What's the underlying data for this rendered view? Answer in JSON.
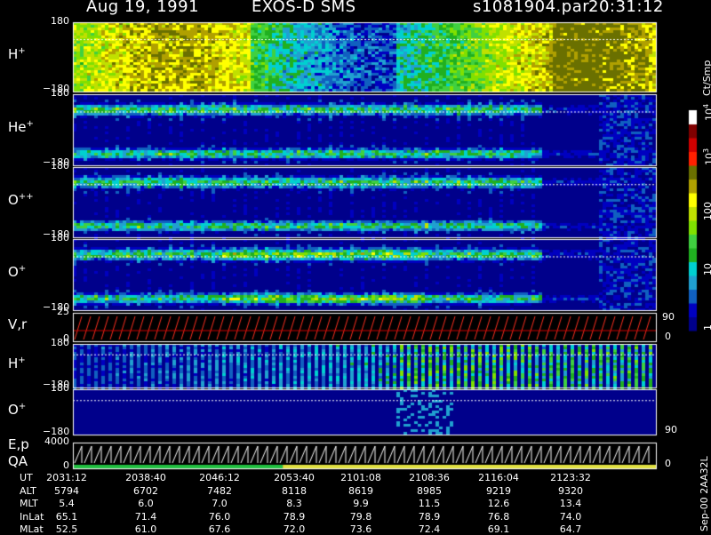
{
  "header": {
    "date": "Aug 19, 1991",
    "instrument": "EXOS-D SMS",
    "file": "s1081904.par",
    "time": "20:31:12"
  },
  "side_label": "Sep-00 2AA32L",
  "chart_data": {
    "type": "heatmap",
    "x_unit": "UT",
    "time_range": [
      "2031:12",
      "2123:32"
    ],
    "panels": [
      {
        "id": "h-plus-1",
        "label": "H",
        "sup": "+",
        "ytop": "180",
        "ybot": "−180",
        "ylim": [
          -180,
          180
        ]
      },
      {
        "id": "he-plus",
        "label": "He",
        "sup": "+",
        "ytop": "180",
        "ybot": "−180",
        "ylim": [
          -180,
          180
        ]
      },
      {
        "id": "o-plus-plus",
        "label": "O",
        "sup": "++",
        "ytop": "180",
        "ybot": "−180",
        "ylim": [
          -180,
          180
        ]
      },
      {
        "id": "o-plus-1",
        "label": "O",
        "sup": "+",
        "ytop": "180",
        "ybot": "−180",
        "ylim": [
          -180,
          180
        ]
      },
      {
        "id": "vr",
        "label": "V,r",
        "sup": "",
        "ytop": "25",
        "ybot": "0",
        "right_top": "90",
        "right_bot": "0"
      },
      {
        "id": "h-plus-2",
        "label": "H",
        "sup": "+",
        "ytop": "180",
        "ybot": "−180",
        "ylim": [
          -180,
          180
        ]
      },
      {
        "id": "o-plus-2",
        "label": "O",
        "sup": "+",
        "ytop": "180",
        "ybot": "−180",
        "ylim": [
          -180,
          180
        ],
        "right_bot": "90"
      },
      {
        "id": "ep-qa",
        "label": "E,p",
        "label2": "QA",
        "sup": "",
        "ytop": "4000",
        "ybot": "0",
        "right_bot": "0"
      }
    ],
    "colorbar": {
      "unit": "Ct/Smp",
      "tick_labels": [
        "1",
        "10",
        "100",
        "10^3",
        "10^4"
      ],
      "log_scale": true,
      "colors": [
        "#00008b",
        "#0000c0",
        "#1060c0",
        "#20a0d0",
        "#00d0d0",
        "#20b020",
        "#40d040",
        "#80e000",
        "#c0e000",
        "#ffff00",
        "#b0a000",
        "#6a7000",
        "#ff2000",
        "#d00000",
        "#800000",
        "#ffffff"
      ]
    },
    "ephemeris": {
      "labels": [
        "UT",
        "ALT",
        "MLT",
        "InLat",
        "MLat"
      ],
      "columns": [
        [
          "2031:12",
          "5794",
          "5.4",
          "65.1",
          "52.5"
        ],
        [
          "2038:40",
          "6702",
          "6.0",
          "71.4",
          "61.0"
        ],
        [
          "2046:12",
          "7482",
          "7.0",
          "76.0",
          "67.6"
        ],
        [
          "2053:40",
          "8118",
          "8.3",
          "78.9",
          "72.0"
        ],
        [
          "2101:08",
          "8619",
          "9.9",
          "79.8",
          "73.6"
        ],
        [
          "2108:36",
          "8985",
          "11.5",
          "78.9",
          "72.4"
        ],
        [
          "2116:04",
          "9219",
          "12.6",
          "76.8",
          "69.1"
        ],
        [
          "2123:32",
          "9320",
          "13.4",
          "74.0",
          "64.7"
        ]
      ]
    }
  }
}
